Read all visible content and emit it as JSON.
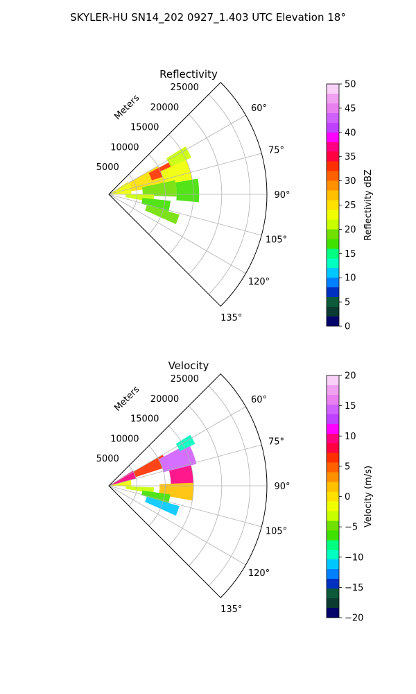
{
  "figure": {
    "title": "SKYLER-HU  SN14_202  0927_1.403 UTC Elevation 18°"
  },
  "colors": {
    "background": "#ffffff",
    "grid": "#b0b0b0",
    "frame": "#000000"
  },
  "chart_data": [
    {
      "type": "heatmap",
      "projection": "polar-sector",
      "title": "Reflectivity",
      "range_label": "Meters",
      "range_ticks": [
        "5000",
        "10000",
        "15000",
        "20000",
        "25000"
      ],
      "range_values_m": [
        5000,
        10000,
        15000,
        20000,
        25000
      ],
      "rmax_m": 28000,
      "azimuth_range_deg": [
        45,
        135
      ],
      "azimuth_ticks": [
        "60°",
        "75°",
        "90°",
        "105°",
        "120°",
        "135°"
      ],
      "azimuth_values_deg": [
        60,
        75,
        90,
        105,
        120,
        135
      ],
      "colorbar": {
        "label": "Reflectivity dBZ",
        "vmin": 0,
        "vmax": 50,
        "ticks": [
          "0",
          "5",
          "10",
          "15",
          "20",
          "25",
          "30",
          "35",
          "40",
          "45",
          "50"
        ],
        "tick_values": [
          0,
          5,
          10,
          15,
          20,
          25,
          30,
          35,
          40,
          45,
          50
        ],
        "stops": [
          "#04046a",
          "#0a3a30",
          "#0d5a3a",
          "#0030c0",
          "#0080ff",
          "#00c8ff",
          "#00ffc0",
          "#00ff80",
          "#40e000",
          "#70e000",
          "#c8ff00",
          "#f0ff00",
          "#ffe000",
          "#ffc000",
          "#ff9000",
          "#ff6000",
          "#ff3000",
          "#ff0040",
          "#ff0080",
          "#ff00ff",
          "#c040ff",
          "#d060ff",
          "#e880f0",
          "#f0a0f0",
          "#f8d0f8"
        ]
      },
      "echo_regions": [
        {
          "az": [
            57,
            90
          ],
          "r": [
            0,
            4000
          ],
          "value": 22
        },
        {
          "az": [
            60,
            82
          ],
          "r": [
            4000,
            10000
          ],
          "value": 24
        },
        {
          "az": [
            62,
            72
          ],
          "r": [
            8000,
            12500
          ],
          "value": 33
        },
        {
          "az": [
            58,
            66
          ],
          "r": [
            12000,
            16000
          ],
          "value": 20
        },
        {
          "az": [
            66,
            80
          ],
          "r": [
            10000,
            15000
          ],
          "value": 22
        },
        {
          "az": [
            80,
            95
          ],
          "r": [
            12000,
            16000
          ],
          "value": 16
        },
        {
          "az": [
            78,
            92
          ],
          "r": [
            6000,
            12000
          ],
          "value": 18
        },
        {
          "az": [
            90,
            100
          ],
          "r": [
            3000,
            8000
          ],
          "value": 20
        },
        {
          "az": [
            96,
            106
          ],
          "r": [
            6000,
            11000
          ],
          "value": 17
        },
        {
          "az": [
            106,
            114
          ],
          "r": [
            7000,
            13000
          ],
          "value": 19
        }
      ]
    },
    {
      "type": "heatmap",
      "projection": "polar-sector",
      "title": "Velocity",
      "range_label": "Meters",
      "range_ticks": [
        "5000",
        "10000",
        "15000",
        "20000",
        "25000"
      ],
      "range_values_m": [
        5000,
        10000,
        15000,
        20000,
        25000
      ],
      "rmax_m": 28000,
      "azimuth_range_deg": [
        45,
        135
      ],
      "azimuth_ticks": [
        "60°",
        "75°",
        "90°",
        "105°",
        "120°",
        "135°"
      ],
      "azimuth_values_deg": [
        60,
        75,
        90,
        105,
        120,
        135
      ],
      "colorbar": {
        "label": "Velocity (m/s)",
        "vmin": -20,
        "vmax": 20,
        "ticks": [
          "−20",
          "−15",
          "−10",
          "−5",
          "0",
          "5",
          "10",
          "15",
          "20"
        ],
        "tick_values": [
          -20,
          -15,
          -10,
          -5,
          0,
          5,
          10,
          15,
          20
        ],
        "stops": [
          "#04046a",
          "#0a3a30",
          "#0d5a3a",
          "#0030c0",
          "#0080ff",
          "#00c8ff",
          "#00ffc0",
          "#00ff80",
          "#40e000",
          "#70e000",
          "#c8ff00",
          "#f0ff00",
          "#ffe000",
          "#ffc000",
          "#ff9000",
          "#ff6000",
          "#ff3000",
          "#ff0040",
          "#ff0080",
          "#ff00ff",
          "#c040ff",
          "#d060ff",
          "#e880f0",
          "#f0a0f0",
          "#f8d0f8"
        ]
      },
      "echo_regions": [
        {
          "az": [
            58,
            75
          ],
          "r": [
            0,
            5000
          ],
          "value": 9
        },
        {
          "az": [
            75,
            92
          ],
          "r": [
            0,
            4000
          ],
          "value": -2
        },
        {
          "az": [
            60,
            72
          ],
          "r": [
            5000,
            11000
          ],
          "value": 6
        },
        {
          "az": [
            62,
            76
          ],
          "r": [
            10000,
            16000
          ],
          "value": 14
        },
        {
          "az": [
            58,
            64
          ],
          "r": [
            14000,
            17000
          ],
          "value": -10
        },
        {
          "az": [
            76,
            90
          ],
          "r": [
            11000,
            15000
          ],
          "value": 10
        },
        {
          "az": [
            88,
            100
          ],
          "r": [
            9000,
            15000
          ],
          "value": 2
        },
        {
          "az": [
            92,
            100
          ],
          "r": [
            3000,
            8000
          ],
          "value": -4
        },
        {
          "az": [
            98,
            106
          ],
          "r": [
            6000,
            11000
          ],
          "value": -7
        },
        {
          "az": [
            106,
            114
          ],
          "r": [
            7000,
            13000
          ],
          "value": -11
        }
      ]
    }
  ]
}
